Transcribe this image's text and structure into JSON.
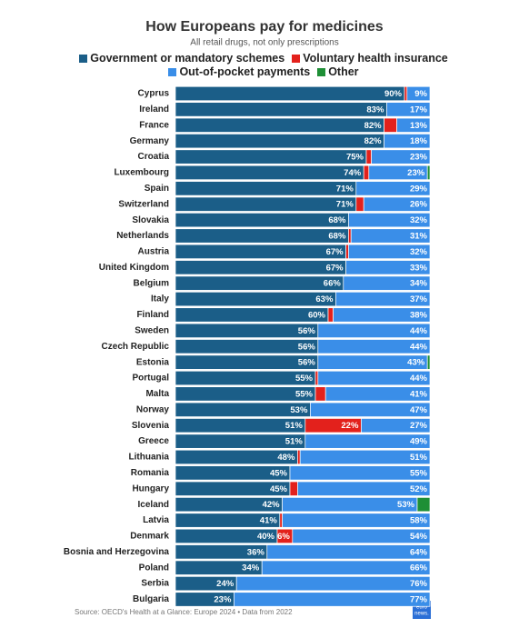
{
  "chart_data": {
    "type": "stacked-bar-horizontal",
    "title": "How Europeans pay for medicines",
    "subtitle": "All retail drugs, not only prescriptions",
    "categories": [
      "Cyprus",
      "Ireland",
      "France",
      "Germany",
      "Croatia",
      "Luxembourg",
      "Spain",
      "Switzerland",
      "Slovakia",
      "Netherlands",
      "Austria",
      "United Kingdom",
      "Belgium",
      "Italy",
      "Finland",
      "Sweden",
      "Czech Republic",
      "Estonia",
      "Portugal",
      "Malta",
      "Norway",
      "Slovenia",
      "Greece",
      "Lithuania",
      "Romania",
      "Hungary",
      "Iceland",
      "Latvia",
      "Denmark",
      "Bosnia and Herzegovina",
      "Poland",
      "Serbia",
      "Bulgaria"
    ],
    "xlim": [
      0,
      100
    ],
    "series": [
      {
        "name": "Government or mandatory schemes",
        "color": "#1b5e88",
        "values": [
          90,
          83,
          82,
          82,
          75,
          74,
          71,
          71,
          68,
          68,
          67,
          67,
          66,
          63,
          60,
          56,
          56,
          56,
          55,
          55,
          53,
          51,
          51,
          48,
          45,
          45,
          42,
          41,
          40,
          36,
          34,
          24,
          23
        ],
        "value_labels": [
          "90%",
          "83%",
          "82%",
          "82%",
          "75%",
          "74%",
          "71%",
          "71%",
          "68%",
          "68%",
          "67%",
          "67%",
          "66%",
          "63%",
          "60%",
          "56%",
          "56%",
          "56%",
          "55%",
          "55%",
          "53%",
          "51%",
          "51%",
          "48%",
          "45%",
          "45%",
          "42%",
          "41%",
          "40%",
          "36%",
          "34%",
          "24%",
          "23%"
        ]
      },
      {
        "name": "Voluntary health insurance",
        "color": "#e3211c",
        "values": [
          1,
          0,
          5,
          0,
          2,
          2,
          0,
          3,
          0,
          1,
          1,
          0,
          0,
          0,
          2,
          0,
          0,
          0,
          1,
          4,
          0,
          22,
          0,
          1,
          0,
          3,
          0,
          1,
          6,
          0,
          0,
          0,
          0
        ],
        "value_labels": [
          null,
          null,
          null,
          null,
          null,
          null,
          null,
          null,
          null,
          null,
          null,
          null,
          null,
          null,
          null,
          null,
          null,
          null,
          null,
          null,
          null,
          "22%",
          null,
          null,
          null,
          null,
          null,
          null,
          "6%",
          null,
          null,
          null,
          null
        ]
      },
      {
        "name": "Out-of-pocket payments",
        "color": "#3a8ee8",
        "values": [
          9,
          17,
          13,
          18,
          23,
          23,
          29,
          26,
          32,
          31,
          32,
          33,
          34,
          37,
          38,
          44,
          44,
          43,
          44,
          41,
          47,
          27,
          49,
          51,
          55,
          52,
          53,
          58,
          54,
          64,
          66,
          76,
          77
        ],
        "value_labels": [
          "9%",
          "17%",
          "13%",
          "18%",
          "23%",
          "23%",
          "29%",
          "26%",
          "32%",
          "31%",
          "32%",
          "33%",
          "34%",
          "37%",
          "38%",
          "44%",
          "44%",
          "43%",
          "44%",
          "41%",
          "47%",
          "27%",
          "49%",
          "51%",
          "55%",
          "52%",
          "53%",
          "58%",
          "54%",
          "64%",
          "66%",
          "76%",
          "77%"
        ]
      },
      {
        "name": "Other",
        "color": "#1e8f36",
        "values": [
          0,
          0,
          0,
          0,
          0,
          1,
          0,
          0,
          0,
          0,
          0,
          0,
          0,
          0,
          0,
          0,
          0,
          1,
          0,
          0,
          0,
          0,
          0,
          0,
          0,
          0,
          5,
          0,
          0,
          0,
          0,
          0,
          0
        ]
      }
    ],
    "source": "Source: OECD's Health at a Glance: Europe 2024 • Data from 2022",
    "logo": [
      "euro",
      "news."
    ]
  }
}
